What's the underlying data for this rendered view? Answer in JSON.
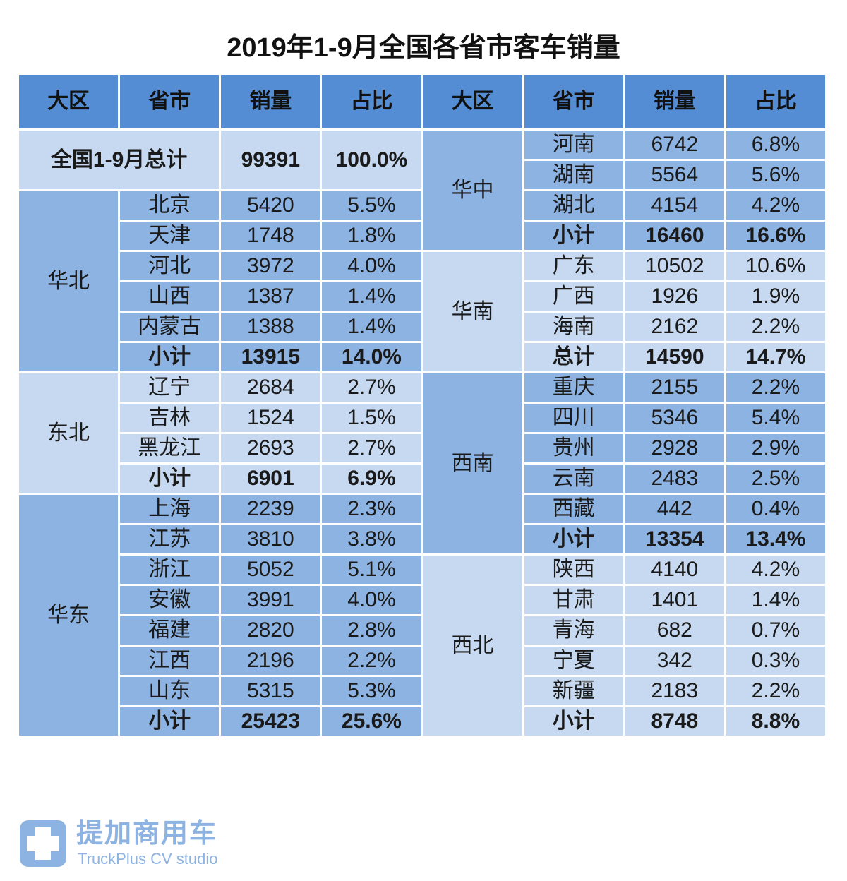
{
  "title": "2019年1-9月全国各省市客车销量",
  "headers": [
    "大区",
    "省市",
    "销量",
    "占比",
    "大区",
    "省市",
    "销量",
    "占比"
  ],
  "total": {
    "label": "全国1-9月总计",
    "sales": "99391",
    "share": "100.0%"
  },
  "left_regions": [
    {
      "name": "华北",
      "tone": "mid",
      "rows": [
        [
          "北京",
          "5420",
          "5.5%"
        ],
        [
          "天津",
          "1748",
          "1.8%"
        ],
        [
          "河北",
          "3972",
          "4.0%"
        ],
        [
          "山西",
          "1387",
          "1.4%"
        ],
        [
          "内蒙古",
          "1388",
          "1.4%"
        ],
        [
          "小计",
          "13915",
          "14.0%"
        ]
      ]
    },
    {
      "name": "东北",
      "tone": "light",
      "rows": [
        [
          "辽宁",
          "2684",
          "2.7%"
        ],
        [
          "吉林",
          "1524",
          "1.5%"
        ],
        [
          "黑龙江",
          "2693",
          "2.7%"
        ],
        [
          "小计",
          "6901",
          "6.9%"
        ]
      ]
    },
    {
      "name": "华东",
      "tone": "mid",
      "rows": [
        [
          "上海",
          "2239",
          "2.3%"
        ],
        [
          "江苏",
          "3810",
          "3.8%"
        ],
        [
          "浙江",
          "5052",
          "5.1%"
        ],
        [
          "安徽",
          "3991",
          "4.0%"
        ],
        [
          "福建",
          "2820",
          "2.8%"
        ],
        [
          "江西",
          "2196",
          "2.2%"
        ],
        [
          "山东",
          "5315",
          "5.3%"
        ],
        [
          "小计",
          "25423",
          "25.6%"
        ]
      ]
    }
  ],
  "right_regions": [
    {
      "name": "华中",
      "tone": "mid",
      "rows": [
        [
          "河南",
          "6742",
          "6.8%"
        ],
        [
          "湖南",
          "5564",
          "5.6%"
        ],
        [
          "湖北",
          "4154",
          "4.2%"
        ],
        [
          "小计",
          "16460",
          "16.6%"
        ]
      ]
    },
    {
      "name": "华南",
      "tone": "light",
      "rows": [
        [
          "广东",
          "10502",
          "10.6%"
        ],
        [
          "广西",
          "1926",
          "1.9%"
        ],
        [
          "海南",
          "2162",
          "2.2%"
        ],
        [
          "总计",
          "14590",
          "14.7%"
        ]
      ]
    },
    {
      "name": "西南",
      "tone": "mid",
      "rows": [
        [
          "重庆",
          "2155",
          "2.2%"
        ],
        [
          "四川",
          "5346",
          "5.4%"
        ],
        [
          "贵州",
          "2928",
          "2.9%"
        ],
        [
          "云南",
          "2483",
          "2.5%"
        ],
        [
          "西藏",
          "442",
          "0.4%"
        ],
        [
          "小计",
          "13354",
          "13.4%"
        ]
      ]
    },
    {
      "name": "西北",
      "tone": "light",
      "rows": [
        [
          "陕西",
          "4140",
          "4.2%"
        ],
        [
          "甘肃",
          "1401",
          "1.4%"
        ],
        [
          "青海",
          "682",
          "0.7%"
        ],
        [
          "宁夏",
          "342",
          "0.3%"
        ],
        [
          "新疆",
          "2183",
          "2.2%"
        ],
        [
          "小计",
          "8748",
          "8.8%"
        ]
      ]
    }
  ],
  "watermark": {
    "name_cn": "提加商用车",
    "name_en": "TruckPlus CV studio"
  }
}
